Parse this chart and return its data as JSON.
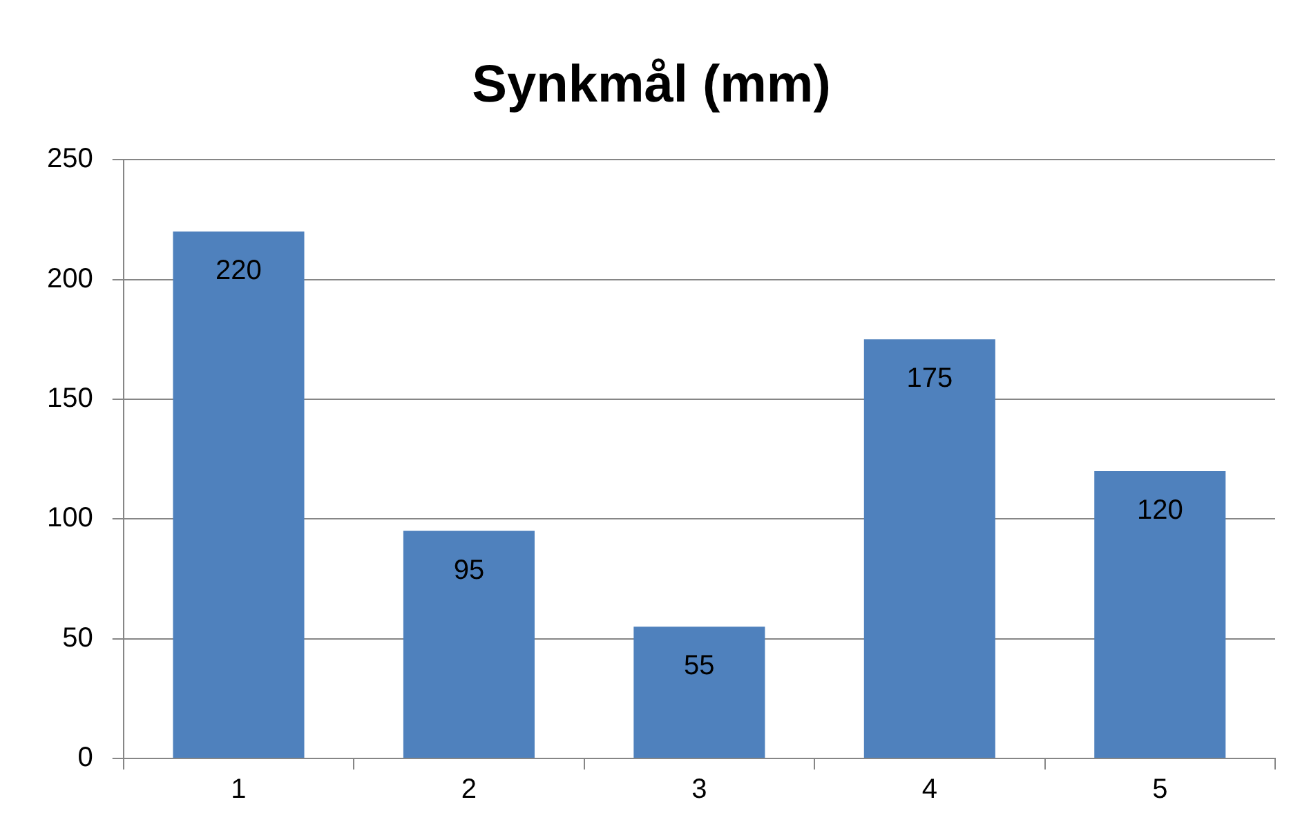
{
  "chart_data": {
    "type": "bar",
    "title": "Synkmål (mm)",
    "categories": [
      "1",
      "2",
      "3",
      "4",
      "5"
    ],
    "values": [
      220,
      95,
      55,
      175,
      120
    ],
    "color": "#4f81bd",
    "ylim": [
      0,
      250
    ],
    "yticks": [
      0,
      50,
      100,
      150,
      200,
      250
    ],
    "grid": "y",
    "data_labels": true,
    "legend": false
  }
}
